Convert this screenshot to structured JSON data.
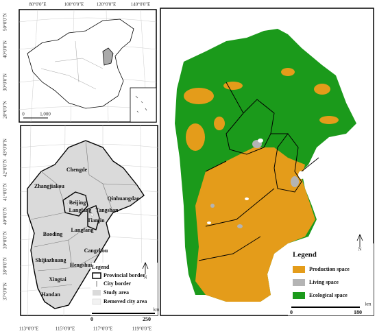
{
  "inset_map": {
    "lon_labels": [
      "80°0'0\"E",
      "100°0'0\"E",
      "120°0'0\"E",
      "140°0'0\"E"
    ],
    "lat_labels": [
      "50°0'0\"N",
      "40°0'0\"N",
      "30°0'0\"N",
      "20°0'0\"N"
    ],
    "scale": [
      "0",
      "1,000"
    ]
  },
  "region_map": {
    "lon_labels": [
      "113°0'0\"E",
      "115°0'0\"E",
      "117°0'0\"E",
      "119°0'0\"E"
    ],
    "lat_labels": [
      "43°0'0\"N",
      "42°0'0\"N",
      "41°0'0\"N",
      "40°0'0\"N",
      "39°0'0\"N",
      "38°0'0\"N",
      "37°0'0\"N"
    ],
    "cities": [
      "Chengde",
      "Zhangjiakou",
      "Beijing",
      "Langfang",
      "Tangshan",
      "Qinhuangdao",
      "Tianjin",
      "Langfang",
      "Baoding",
      "Cangzhou",
      "Shijiazhuang",
      "Hengshui",
      "Xingtai",
      "Handan"
    ],
    "legend": {
      "title": "Legend",
      "items": [
        "Provincial border",
        "City border",
        "Study area",
        "Removed city area"
      ]
    },
    "scale": {
      "start": "0",
      "end": "250",
      "unit": "km"
    },
    "north": "N"
  },
  "land_use_map": {
    "legend": {
      "title": "Legend",
      "items": [
        {
          "label": "Production space",
          "color": "#e49c1a"
        },
        {
          "label": "Living space",
          "color": "#b4b4b4"
        },
        {
          "label": "Ecological space",
          "color": "#1b9a1b"
        }
      ]
    },
    "scale": {
      "start": "0",
      "end": "180",
      "unit": "km"
    },
    "north": "N"
  }
}
